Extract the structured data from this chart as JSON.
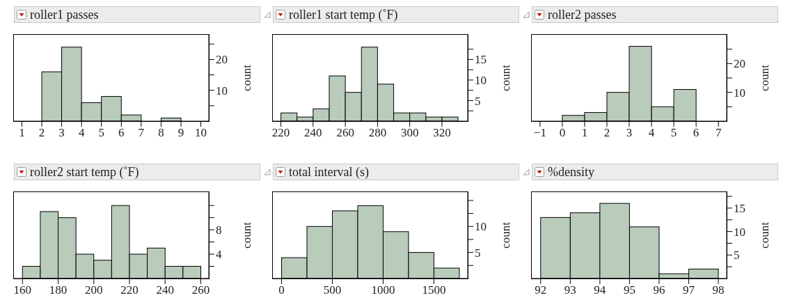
{
  "chart_data": [
    {
      "type": "histogram",
      "title": "roller1 passes",
      "ylabel": "count",
      "color": "#b9cbbb",
      "bins": [
        2,
        3,
        4,
        5,
        6,
        7,
        8,
        9
      ],
      "values": [
        16,
        24,
        6,
        8,
        2,
        0,
        1
      ],
      "xlim": [
        0.6,
        10.4
      ],
      "xticks": [
        1,
        2,
        3,
        4,
        5,
        6,
        7,
        8,
        9,
        10
      ],
      "ylim": [
        0,
        28
      ],
      "yticks": [
        {
          "value": 5,
          "label": null
        },
        10,
        {
          "value": 15,
          "label": null
        },
        20,
        {
          "value": 25,
          "label": null
        }
      ]
    },
    {
      "type": "histogram",
      "title": "roller1 start temp (˚F)",
      "ylabel": "count",
      "color": "#b9cbbb",
      "bins": [
        220,
        230,
        240,
        250,
        260,
        270,
        280,
        290,
        300,
        310,
        320,
        330
      ],
      "values": [
        2,
        1,
        3,
        11,
        7,
        18,
        9,
        2,
        2,
        1,
        1
      ],
      "xlim": [
        215,
        336
      ],
      "xticks": [
        220,
        240,
        260,
        280,
        300,
        320
      ],
      "ylim": [
        0,
        21
      ],
      "yticks": [
        {
          "value": 2.5,
          "label": null
        },
        5,
        {
          "value": 7.5,
          "label": null
        },
        10,
        {
          "value": 12.5,
          "label": null
        },
        15,
        {
          "value": 17.5,
          "label": null
        }
      ]
    },
    {
      "type": "histogram",
      "title": "roller2 passes",
      "ylabel": "count",
      "color": "#b9cbbb",
      "bins": [
        0,
        1,
        2,
        3,
        4,
        5,
        6
      ],
      "values": [
        2,
        3,
        10,
        26,
        5,
        11
      ],
      "xlim": [
        -1.37,
        7.37
      ],
      "xticks": [
        {
          "value": -1,
          "label": "−1"
        },
        0,
        1,
        2,
        3,
        4,
        5,
        6,
        7
      ],
      "ylim": [
        0,
        30
      ],
      "yticks": [
        {
          "value": 5,
          "label": null
        },
        10,
        {
          "value": 15,
          "label": null
        },
        20,
        {
          "value": 25,
          "label": null
        }
      ]
    },
    {
      "type": "histogram",
      "title": "roller2 start temp (˚F)",
      "ylabel": "count",
      "color": "#b9cbbb",
      "bins": [
        160,
        170,
        180,
        190,
        200,
        210,
        220,
        230,
        240,
        250,
        260
      ],
      "values": [
        2,
        11,
        10,
        4,
        3,
        12,
        4,
        5,
        2,
        2
      ],
      "xlim": [
        155.2,
        264.5
      ],
      "xticks": [
        160,
        180,
        200,
        220,
        240,
        260
      ],
      "ylim": [
        0,
        14.2
      ],
      "yticks": [
        {
          "value": 2,
          "label": null
        },
        4,
        {
          "value": 6,
          "label": null
        },
        8,
        {
          "value": 10,
          "label": null
        },
        {
          "value": 12,
          "label": null
        }
      ]
    },
    {
      "type": "histogram",
      "title": "total interval (s)",
      "ylabel": "count",
      "color": "#b9cbbb",
      "bins": [
        0,
        250,
        500,
        750,
        1000,
        1250,
        1500,
        1750
      ],
      "values": [
        4,
        10,
        13,
        14,
        9,
        5,
        2
      ],
      "xlim": [
        -86,
        1833
      ],
      "xticks": [
        0,
        500,
        1000,
        1500
      ],
      "ylim": [
        0,
        16.6
      ],
      "yticks": [
        {
          "value": 2.5,
          "label": null
        },
        5,
        {
          "value": 7.5,
          "label": null
        },
        10,
        {
          "value": 12.5,
          "label": null
        },
        {
          "value": 15,
          "label": null
        }
      ]
    },
    {
      "type": "histogram",
      "title": "%density",
      "ylabel": "count",
      "color": "#b9cbbb",
      "bins": [
        92,
        93,
        94,
        95,
        96,
        97,
        98
      ],
      "values": [
        13,
        14,
        16,
        11,
        1,
        2
      ],
      "xlim": [
        91.7,
        98.28
      ],
      "xticks": [
        92,
        93,
        94,
        95,
        96,
        97,
        98
      ],
      "ylim": [
        0,
        18.4
      ],
      "yticks": [
        {
          "value": 2.5,
          "label": null
        },
        5,
        {
          "value": 7.5,
          "label": null
        },
        10,
        {
          "value": 12.5,
          "label": null
        },
        15,
        {
          "value": 17.5,
          "label": null
        }
      ]
    }
  ]
}
